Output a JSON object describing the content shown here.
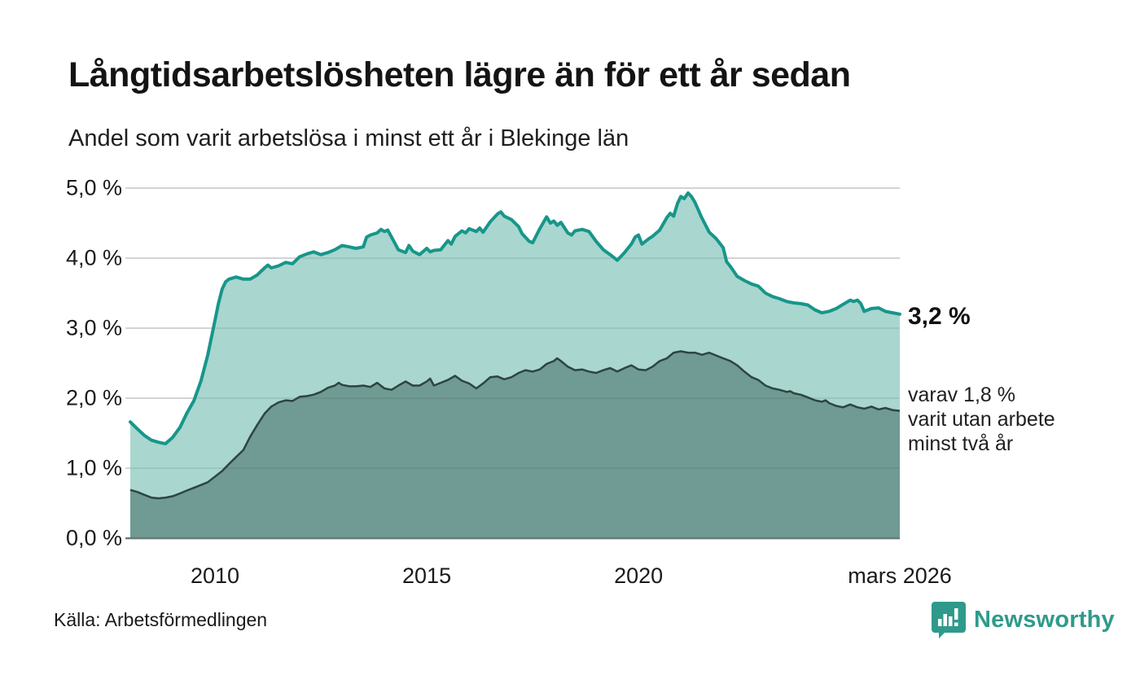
{
  "header": {
    "title": "Långtidsarbetslösheten lägre än för ett år sedan",
    "subtitle": "Andel som varit arbetslösa i minst ett år i Blekinge län"
  },
  "chart_data": {
    "type": "area",
    "title": "Långtidsarbetslösheten lägre än för ett år sedan",
    "subtitle": "Andel som varit arbetslösa i minst ett år i Blekinge län",
    "unit": "%",
    "grid": true,
    "x_axis": {
      "range_years": [
        2008.0,
        2026.17
      ],
      "ticks": [
        {
          "label": "2010",
          "year": 2010
        },
        {
          "label": "2015",
          "year": 2015
        },
        {
          "label": "2020",
          "year": 2020
        },
        {
          "label": "mars 2026",
          "year": 2026.17
        }
      ]
    },
    "y_axis": {
      "min": 0,
      "max": 5,
      "ticks": [
        {
          "label": "0,0 %",
          "value": 0
        },
        {
          "label": "1,0 %",
          "value": 1
        },
        {
          "label": "2,0 %",
          "value": 2
        },
        {
          "label": "3,0 %",
          "value": 3
        },
        {
          "label": "4,0 %",
          "value": 4
        },
        {
          "label": "5,0 %",
          "value": 5
        }
      ]
    },
    "series": [
      {
        "name": "Andel som varit arbetslösa i minst ett år",
        "line_color": "#17968a",
        "fill_color": "#a9d6cf",
        "line_width": 4,
        "end_value": "3,2 %",
        "points": [
          [
            2008.0,
            1.66
          ],
          [
            2008.17,
            1.56
          ],
          [
            2008.33,
            1.47
          ],
          [
            2008.5,
            1.4
          ],
          [
            2008.67,
            1.37
          ],
          [
            2008.83,
            1.35
          ],
          [
            2009.0,
            1.44
          ],
          [
            2009.17,
            1.58
          ],
          [
            2009.33,
            1.78
          ],
          [
            2009.5,
            1.96
          ],
          [
            2009.67,
            2.25
          ],
          [
            2009.83,
            2.62
          ],
          [
            2010.0,
            3.11
          ],
          [
            2010.08,
            3.35
          ],
          [
            2010.17,
            3.56
          ],
          [
            2010.25,
            3.66
          ],
          [
            2010.33,
            3.7
          ],
          [
            2010.5,
            3.73
          ],
          [
            2010.67,
            3.7
          ],
          [
            2010.83,
            3.7
          ],
          [
            2011.0,
            3.76
          ],
          [
            2011.17,
            3.86
          ],
          [
            2011.25,
            3.9
          ],
          [
            2011.33,
            3.86
          ],
          [
            2011.5,
            3.89
          ],
          [
            2011.67,
            3.94
          ],
          [
            2011.83,
            3.92
          ],
          [
            2012.0,
            4.02
          ],
          [
            2012.17,
            4.06
          ],
          [
            2012.33,
            4.09
          ],
          [
            2012.5,
            4.05
          ],
          [
            2012.67,
            4.08
          ],
          [
            2012.83,
            4.12
          ],
          [
            2013.0,
            4.18
          ],
          [
            2013.17,
            4.16
          ],
          [
            2013.33,
            4.14
          ],
          [
            2013.5,
            4.16
          ],
          [
            2013.58,
            4.3
          ],
          [
            2013.67,
            4.33
          ],
          [
            2013.83,
            4.36
          ],
          [
            2013.92,
            4.41
          ],
          [
            2014.0,
            4.38
          ],
          [
            2014.08,
            4.4
          ],
          [
            2014.17,
            4.3
          ],
          [
            2014.33,
            4.12
          ],
          [
            2014.5,
            4.08
          ],
          [
            2014.58,
            4.18
          ],
          [
            2014.67,
            4.1
          ],
          [
            2014.83,
            4.05
          ],
          [
            2015.0,
            4.14
          ],
          [
            2015.08,
            4.09
          ],
          [
            2015.17,
            4.11
          ],
          [
            2015.33,
            4.12
          ],
          [
            2015.5,
            4.25
          ],
          [
            2015.58,
            4.2
          ],
          [
            2015.67,
            4.31
          ],
          [
            2015.83,
            4.39
          ],
          [
            2015.92,
            4.36
          ],
          [
            2016.0,
            4.42
          ],
          [
            2016.17,
            4.38
          ],
          [
            2016.25,
            4.43
          ],
          [
            2016.33,
            4.37
          ],
          [
            2016.5,
            4.52
          ],
          [
            2016.67,
            4.63
          ],
          [
            2016.75,
            4.66
          ],
          [
            2016.83,
            4.6
          ],
          [
            2017.0,
            4.55
          ],
          [
            2017.17,
            4.45
          ],
          [
            2017.25,
            4.35
          ],
          [
            2017.42,
            4.24
          ],
          [
            2017.5,
            4.22
          ],
          [
            2017.67,
            4.42
          ],
          [
            2017.83,
            4.59
          ],
          [
            2017.92,
            4.5
          ],
          [
            2018.0,
            4.53
          ],
          [
            2018.08,
            4.47
          ],
          [
            2018.17,
            4.51
          ],
          [
            2018.33,
            4.36
          ],
          [
            2018.42,
            4.33
          ],
          [
            2018.5,
            4.39
          ],
          [
            2018.67,
            4.41
          ],
          [
            2018.83,
            4.38
          ],
          [
            2019.0,
            4.24
          ],
          [
            2019.17,
            4.12
          ],
          [
            2019.33,
            4.05
          ],
          [
            2019.5,
            3.97
          ],
          [
            2019.67,
            4.08
          ],
          [
            2019.83,
            4.2
          ],
          [
            2019.92,
            4.3
          ],
          [
            2020.0,
            4.33
          ],
          [
            2020.08,
            4.2
          ],
          [
            2020.25,
            4.28
          ],
          [
            2020.33,
            4.31
          ],
          [
            2020.5,
            4.4
          ],
          [
            2020.67,
            4.58
          ],
          [
            2020.75,
            4.64
          ],
          [
            2020.83,
            4.6
          ],
          [
            2020.92,
            4.78
          ],
          [
            2021.0,
            4.88
          ],
          [
            2021.08,
            4.85
          ],
          [
            2021.17,
            4.93
          ],
          [
            2021.25,
            4.88
          ],
          [
            2021.33,
            4.8
          ],
          [
            2021.5,
            4.57
          ],
          [
            2021.67,
            4.37
          ],
          [
            2021.83,
            4.28
          ],
          [
            2022.0,
            4.15
          ],
          [
            2022.08,
            3.95
          ],
          [
            2022.17,
            3.88
          ],
          [
            2022.33,
            3.74
          ],
          [
            2022.5,
            3.68
          ],
          [
            2022.67,
            3.63
          ],
          [
            2022.83,
            3.6
          ],
          [
            2023.0,
            3.5
          ],
          [
            2023.17,
            3.45
          ],
          [
            2023.33,
            3.42
          ],
          [
            2023.5,
            3.38
          ],
          [
            2023.67,
            3.36
          ],
          [
            2023.83,
            3.35
          ],
          [
            2024.0,
            3.33
          ],
          [
            2024.17,
            3.26
          ],
          [
            2024.33,
            3.22
          ],
          [
            2024.5,
            3.24
          ],
          [
            2024.67,
            3.28
          ],
          [
            2024.83,
            3.34
          ],
          [
            2025.0,
            3.4
          ],
          [
            2025.08,
            3.38
          ],
          [
            2025.17,
            3.4
          ],
          [
            2025.25,
            3.35
          ],
          [
            2025.33,
            3.24
          ],
          [
            2025.5,
            3.28
          ],
          [
            2025.67,
            3.29
          ],
          [
            2025.83,
            3.24
          ],
          [
            2026.0,
            3.22
          ],
          [
            2026.17,
            3.2
          ]
        ]
      },
      {
        "name": "varav varit utan arbete minst två år",
        "line_color": "#2d453f",
        "fill_color": "#6f9b94",
        "line_width": 2.5,
        "end_value": "1,8 %",
        "points": [
          [
            2008.0,
            0.69
          ],
          [
            2008.17,
            0.66
          ],
          [
            2008.33,
            0.62
          ],
          [
            2008.5,
            0.58
          ],
          [
            2008.67,
            0.57
          ],
          [
            2008.83,
            0.58
          ],
          [
            2009.0,
            0.6
          ],
          [
            2009.17,
            0.64
          ],
          [
            2009.33,
            0.68
          ],
          [
            2009.5,
            0.72
          ],
          [
            2009.67,
            0.76
          ],
          [
            2009.83,
            0.8
          ],
          [
            2010.0,
            0.88
          ],
          [
            2010.17,
            0.96
          ],
          [
            2010.33,
            1.06
          ],
          [
            2010.5,
            1.16
          ],
          [
            2010.67,
            1.26
          ],
          [
            2010.83,
            1.45
          ],
          [
            2011.0,
            1.62
          ],
          [
            2011.17,
            1.78
          ],
          [
            2011.33,
            1.88
          ],
          [
            2011.5,
            1.94
          ],
          [
            2011.67,
            1.97
          ],
          [
            2011.83,
            1.96
          ],
          [
            2012.0,
            2.02
          ],
          [
            2012.17,
            2.03
          ],
          [
            2012.33,
            2.05
          ],
          [
            2012.5,
            2.09
          ],
          [
            2012.67,
            2.15
          ],
          [
            2012.83,
            2.18
          ],
          [
            2012.92,
            2.22
          ],
          [
            2013.0,
            2.19
          ],
          [
            2013.17,
            2.17
          ],
          [
            2013.33,
            2.17
          ],
          [
            2013.5,
            2.18
          ],
          [
            2013.67,
            2.16
          ],
          [
            2013.83,
            2.22
          ],
          [
            2014.0,
            2.14
          ],
          [
            2014.17,
            2.12
          ],
          [
            2014.33,
            2.18
          ],
          [
            2014.5,
            2.24
          ],
          [
            2014.67,
            2.18
          ],
          [
            2014.83,
            2.18
          ],
          [
            2015.0,
            2.24
          ],
          [
            2015.08,
            2.28
          ],
          [
            2015.17,
            2.18
          ],
          [
            2015.33,
            2.22
          ],
          [
            2015.5,
            2.26
          ],
          [
            2015.67,
            2.32
          ],
          [
            2015.83,
            2.25
          ],
          [
            2016.0,
            2.21
          ],
          [
            2016.17,
            2.14
          ],
          [
            2016.33,
            2.21
          ],
          [
            2016.5,
            2.3
          ],
          [
            2016.67,
            2.31
          ],
          [
            2016.83,
            2.27
          ],
          [
            2017.0,
            2.3
          ],
          [
            2017.17,
            2.36
          ],
          [
            2017.33,
            2.4
          ],
          [
            2017.5,
            2.38
          ],
          [
            2017.67,
            2.41
          ],
          [
            2017.83,
            2.49
          ],
          [
            2018.0,
            2.53
          ],
          [
            2018.08,
            2.57
          ],
          [
            2018.17,
            2.53
          ],
          [
            2018.33,
            2.45
          ],
          [
            2018.5,
            2.4
          ],
          [
            2018.67,
            2.41
          ],
          [
            2018.83,
            2.38
          ],
          [
            2019.0,
            2.36
          ],
          [
            2019.17,
            2.4
          ],
          [
            2019.33,
            2.43
          ],
          [
            2019.5,
            2.38
          ],
          [
            2019.67,
            2.43
          ],
          [
            2019.83,
            2.47
          ],
          [
            2020.0,
            2.41
          ],
          [
            2020.17,
            2.4
          ],
          [
            2020.33,
            2.45
          ],
          [
            2020.5,
            2.53
          ],
          [
            2020.67,
            2.57
          ],
          [
            2020.83,
            2.65
          ],
          [
            2021.0,
            2.67
          ],
          [
            2021.17,
            2.65
          ],
          [
            2021.33,
            2.65
          ],
          [
            2021.5,
            2.62
          ],
          [
            2021.67,
            2.65
          ],
          [
            2021.83,
            2.61
          ],
          [
            2022.0,
            2.57
          ],
          [
            2022.17,
            2.53
          ],
          [
            2022.33,
            2.47
          ],
          [
            2022.5,
            2.38
          ],
          [
            2022.67,
            2.3
          ],
          [
            2022.83,
            2.26
          ],
          [
            2023.0,
            2.18
          ],
          [
            2023.17,
            2.14
          ],
          [
            2023.33,
            2.12
          ],
          [
            2023.5,
            2.09
          ],
          [
            2023.58,
            2.1
          ],
          [
            2023.67,
            2.07
          ],
          [
            2023.83,
            2.05
          ],
          [
            2024.0,
            2.01
          ],
          [
            2024.17,
            1.97
          ],
          [
            2024.33,
            1.95
          ],
          [
            2024.42,
            1.97
          ],
          [
            2024.5,
            1.93
          ],
          [
            2024.67,
            1.89
          ],
          [
            2024.83,
            1.87
          ],
          [
            2025.0,
            1.91
          ],
          [
            2025.17,
            1.87
          ],
          [
            2025.33,
            1.85
          ],
          [
            2025.5,
            1.88
          ],
          [
            2025.67,
            1.84
          ],
          [
            2025.83,
            1.86
          ],
          [
            2026.0,
            1.83
          ],
          [
            2026.17,
            1.82
          ]
        ]
      }
    ],
    "annotations": {
      "end_value_label": "3,2 %",
      "sub_label_lines": [
        "varav 1,8 %",
        "varit utan arbete",
        "minst två år"
      ]
    },
    "legend_position": "right-annotations",
    "colors": {
      "grid": "#e5e5e9",
      "baseline": "#6d7a78",
      "background": "#ffffff"
    }
  },
  "footer": {
    "source": "Källa: Arbetsförmedlingen",
    "brand": "Newsworthy",
    "brand_color": "#2f9a8b",
    "brand_icon": "bar-chart-speech-bubble-icon"
  }
}
